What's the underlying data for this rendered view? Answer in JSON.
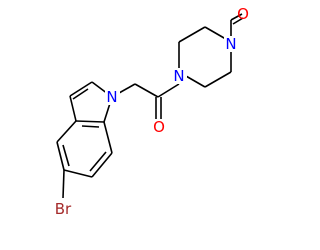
{
  "atoms": [
    {
      "label": "N"
    },
    {
      "label": "O"
    },
    {
      "label": "N"
    },
    {
      "label": "N"
    },
    {
      "label": "O"
    },
    {
      "label": "Br"
    }
  ]
}
